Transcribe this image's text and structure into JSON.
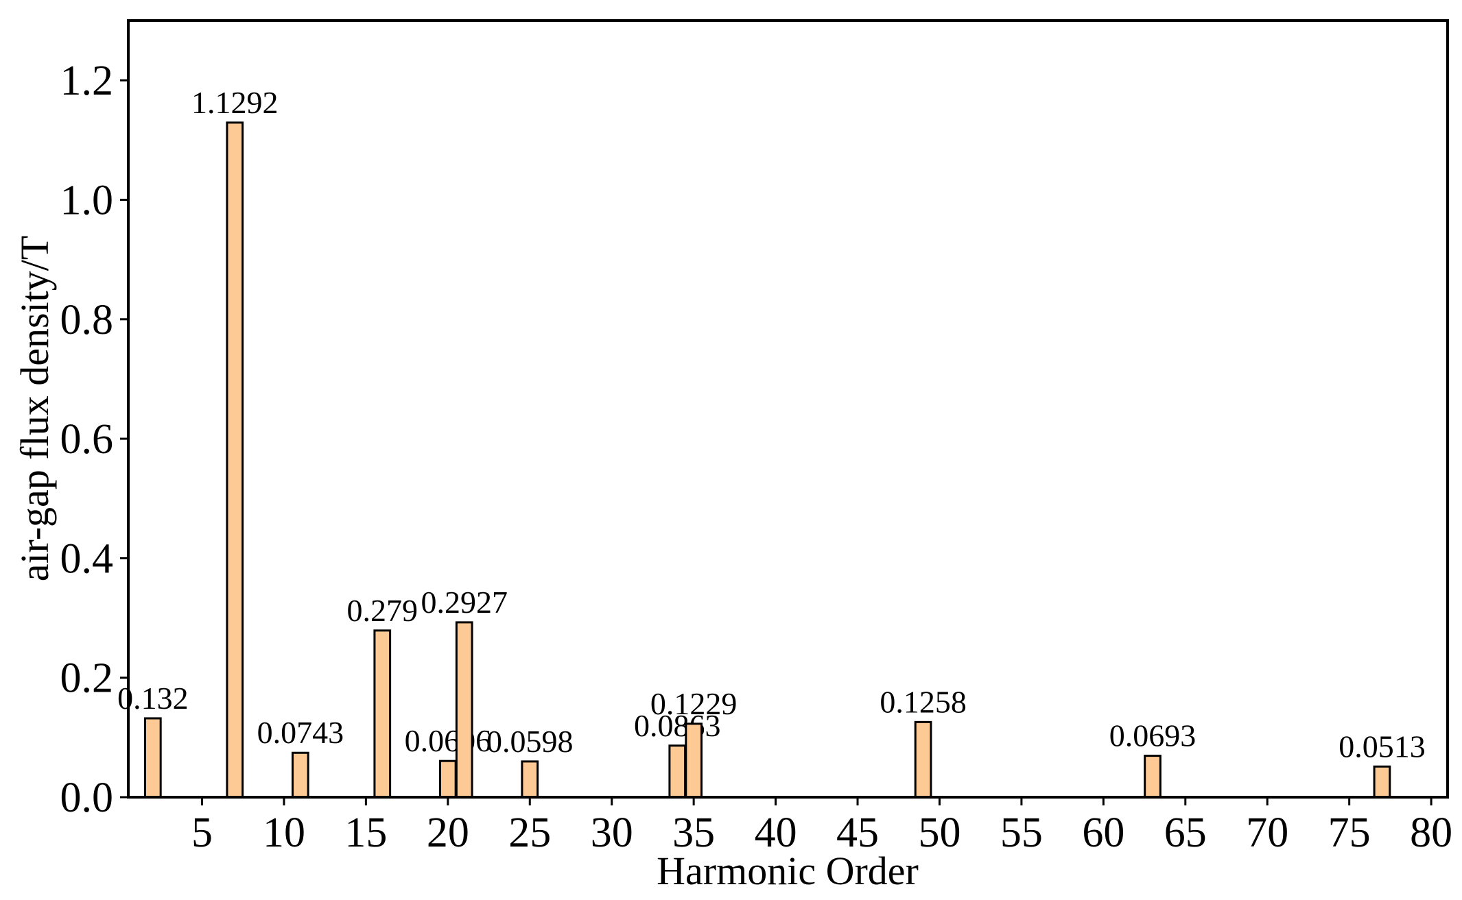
{
  "chart_data": {
    "type": "bar",
    "xlabel": "Harmonic Order",
    "ylabel": "air-gap flux density/T",
    "x": [
      2,
      7,
      11,
      16,
      20,
      21,
      25,
      34,
      35,
      49,
      63,
      77
    ],
    "values": [
      0.132,
      1.1292,
      0.0743,
      0.279,
      0.0606,
      0.2927,
      0.0598,
      0.0863,
      0.1229,
      0.1258,
      0.0693,
      0.0513
    ],
    "color": "#fdc994",
    "xlim": [
      0.5,
      81
    ],
    "xticks": [
      5,
      10,
      15,
      20,
      25,
      30,
      35,
      40,
      45,
      50,
      55,
      60,
      65,
      70,
      75,
      80
    ],
    "ylim": [
      0,
      1.3
    ],
    "yticks": [
      {
        "value": 0,
        "label": "0.0"
      },
      {
        "value": 0.2,
        "label": "0.2"
      },
      {
        "value": 0.4,
        "label": "0.4"
      },
      {
        "value": 0.6,
        "label": "0.6"
      },
      {
        "value": 0.8,
        "label": "0.8"
      },
      {
        "value": 1.0,
        "label": "1.0"
      },
      {
        "value": 1.2,
        "label": "1.2"
      }
    ],
    "grid": false
  }
}
